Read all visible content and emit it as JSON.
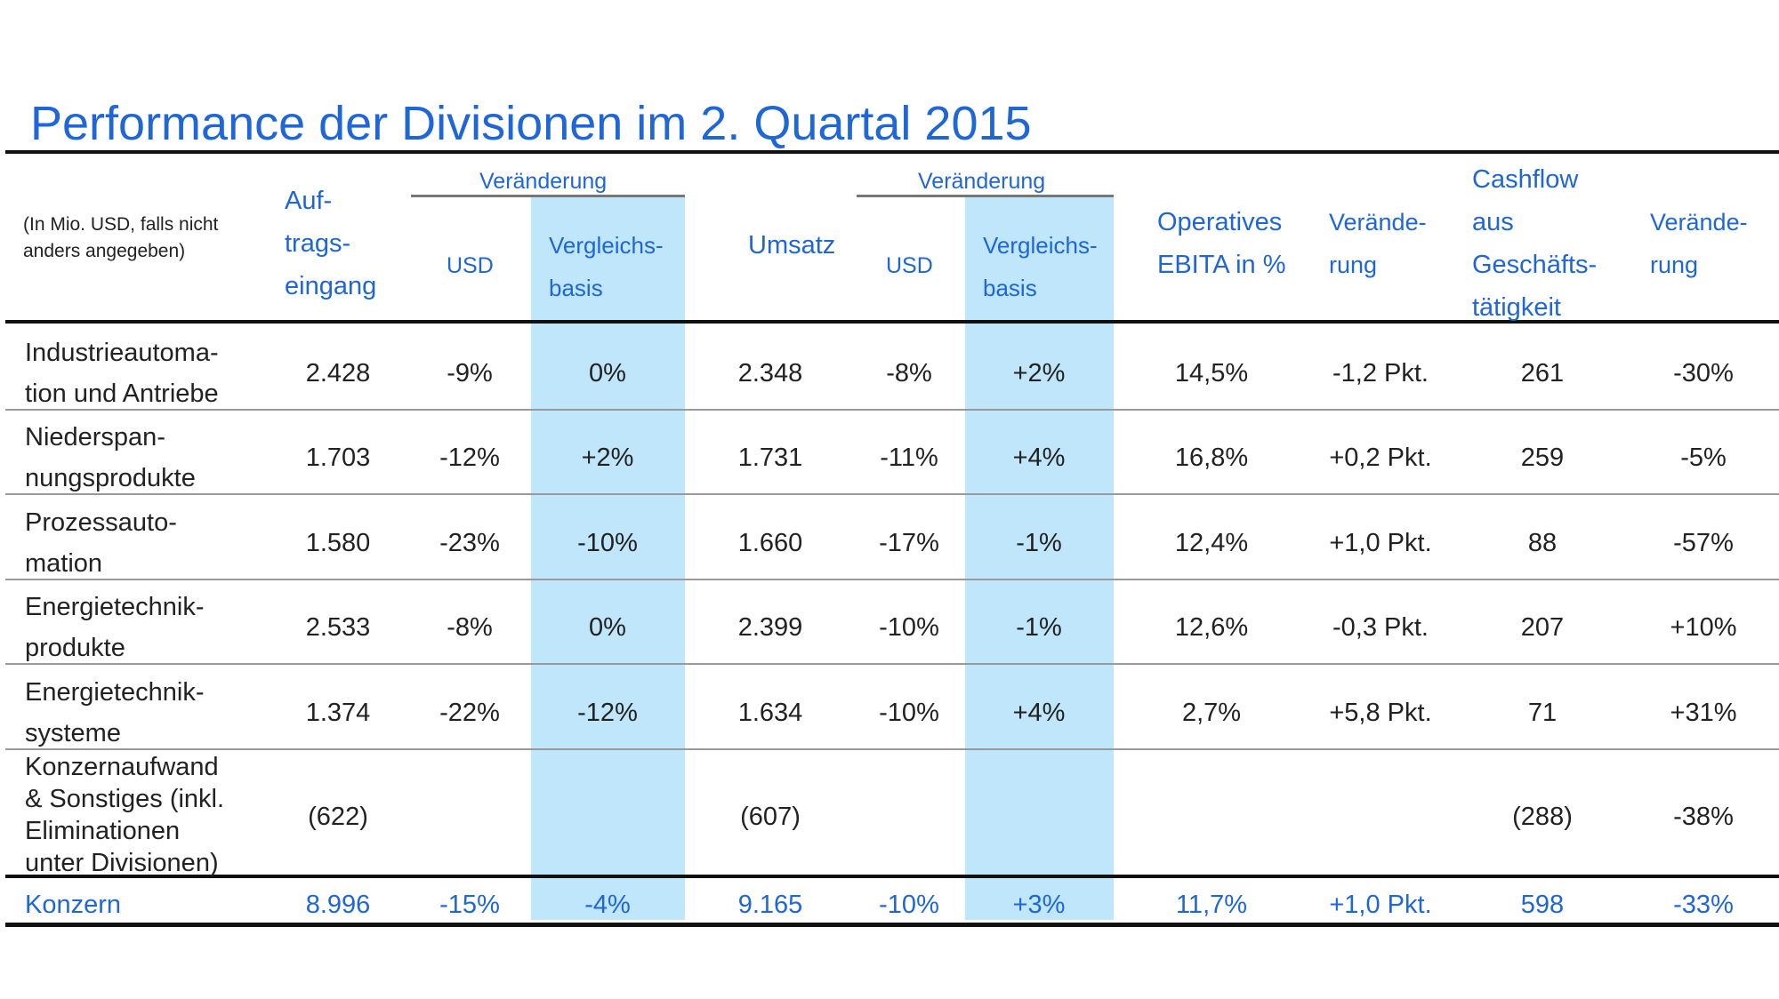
{
  "title": "Performance der Divisionen im 2. Quartal 2015",
  "header": {
    "note": [
      "(In Mio. USD, falls nicht",
      "anders angegeben)"
    ],
    "auftragseingang": [
      "Auf-",
      "trags-",
      "eingang"
    ],
    "veraenderung_group_1": "Veränderung",
    "veraenderung_group_2": "Veränderung",
    "usd_1": "USD",
    "vergleichsbasis_1": [
      "Vergleichs-",
      "basis"
    ],
    "umsatz": "Umsatz",
    "usd_2": "USD",
    "vergleichsbasis_2": [
      "Vergleichs-",
      "basis"
    ],
    "ebita": [
      "Operatives",
      "EBITA in %"
    ],
    "veraenderung_ebita": [
      "Verände-",
      "rung"
    ],
    "cashflow": [
      "Cashflow",
      "aus",
      "Geschäfts-",
      "tätigkeit"
    ],
    "veraenderung_cashflow": [
      "Verände-",
      "rung"
    ]
  },
  "rows": [
    {
      "label": [
        "Industrieautoma-",
        "tion und Antriebe"
      ],
      "auftrag": "2.428",
      "usd1": "-9%",
      "vgl1": "0%",
      "umsatz": "2.348",
      "usd2": "-8%",
      "vgl2": "+2%",
      "ebita": "14,5%",
      "ebita_chg": "-1,2 Pkt.",
      "cashflow": "261",
      "cf_chg": "-30%"
    },
    {
      "label": [
        "Niederspan-",
        "nungsprodukte"
      ],
      "auftrag": "1.703",
      "usd1": "-12%",
      "vgl1": "+2%",
      "umsatz": "1.731",
      "usd2": "-11%",
      "vgl2": "+4%",
      "ebita": "16,8%",
      "ebita_chg": "+0,2 Pkt.",
      "cashflow": "259",
      "cf_chg": "-5%"
    },
    {
      "label": [
        "Prozessauto-",
        "mation"
      ],
      "auftrag": "1.580",
      "usd1": "-23%",
      "vgl1": "-10%",
      "umsatz": "1.660",
      "usd2": "-17%",
      "vgl2": "-1%",
      "ebita": "12,4%",
      "ebita_chg": "+1,0 Pkt.",
      "cashflow": "88",
      "cf_chg": "-57%"
    },
    {
      "label": [
        "Energietechnik-",
        "produkte"
      ],
      "auftrag": "2.533",
      "usd1": "-8%",
      "vgl1": "0%",
      "umsatz": "2.399",
      "usd2": "-10%",
      "vgl2": "-1%",
      "ebita": "12,6%",
      "ebita_chg": "-0,3 Pkt.",
      "cashflow": "207",
      "cf_chg": "+10%"
    },
    {
      "label": [
        "Energietechnik-",
        "systeme"
      ],
      "auftrag": "1.374",
      "usd1": "-22%",
      "vgl1": "-12%",
      "umsatz": "1.634",
      "usd2": "-10%",
      "vgl2": "+4%",
      "ebita": "2,7%",
      "ebita_chg": "+5,8 Pkt.",
      "cashflow": "71",
      "cf_chg": "+31%"
    },
    {
      "label": [
        "Konzernaufwand",
        "& Sonstiges (inkl.",
        "Eliminationen",
        "unter Divisionen)"
      ],
      "auftrag": "(622)",
      "usd1": "",
      "vgl1": "",
      "umsatz": "(607)",
      "usd2": "",
      "vgl2": "",
      "ebita": "",
      "ebita_chg": "",
      "cashflow": "(288)",
      "cf_chg": "-38%"
    }
  ],
  "total": {
    "label": "Konzern",
    "auftrag": "8.996",
    "usd1": "-15%",
    "vgl1": "-4%",
    "umsatz": "9.165",
    "usd2": "-10%",
    "vgl2": "+3%",
    "ebita": "11,7%",
    "ebita_chg": "+1,0 Pkt.",
    "cashflow": "598",
    "cf_chg": "-33%"
  },
  "colors": {
    "accent": "#1f66d6",
    "band": "#bfe6fb",
    "rule": "#111111",
    "row_rule": "#9a9a9a"
  }
}
